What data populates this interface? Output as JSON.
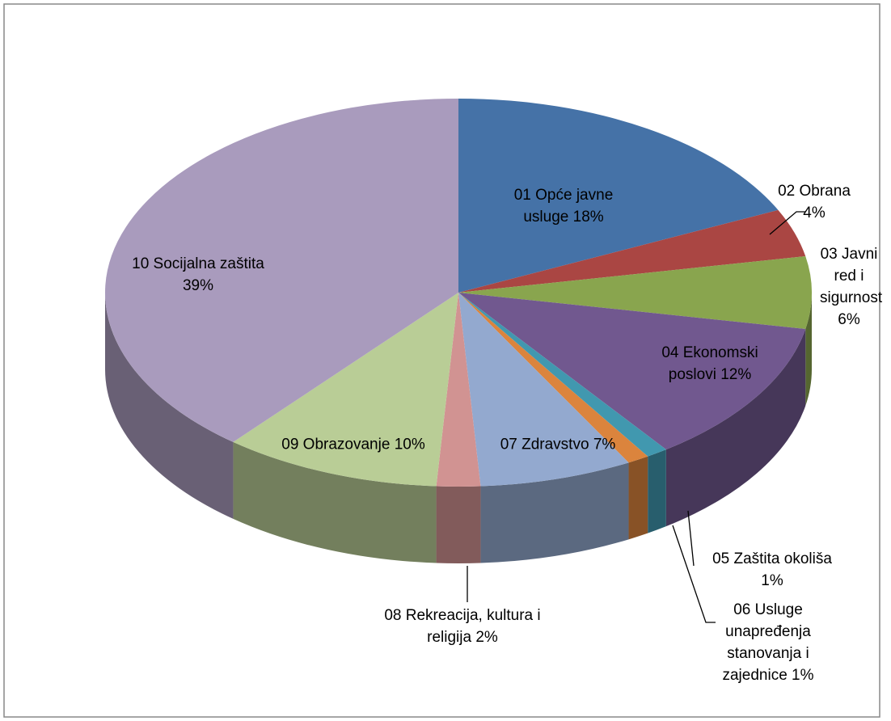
{
  "chart_data": {
    "type": "pie",
    "categories": [
      "01 Opće javne usluge",
      "02 Obrana",
      "03 Javni red i sigurnost",
      "04 Ekonomski poslovi",
      "05 Zaštita okoliša",
      "06 Usluge unapređenja stanovanja i zajednice",
      "07 Zdravstvo",
      "08 Rekreacija, kultura i religija",
      "09 Obrazovanje",
      "10 Socijalna zaštita"
    ],
    "values": [
      18,
      4,
      6,
      12,
      1,
      1,
      7,
      2,
      10,
      39
    ],
    "value_labels": [
      "18%",
      "4%",
      "6%",
      "12%",
      "1%",
      "1%",
      "7%",
      "2%",
      "10%",
      "39%"
    ],
    "colors": [
      "#4572a7",
      "#aa4643",
      "#89a54e",
      "#71588f",
      "#4198af",
      "#db843d",
      "#93a9cf",
      "#d19392",
      "#b9cd96",
      "#a99bbd"
    ]
  }
}
